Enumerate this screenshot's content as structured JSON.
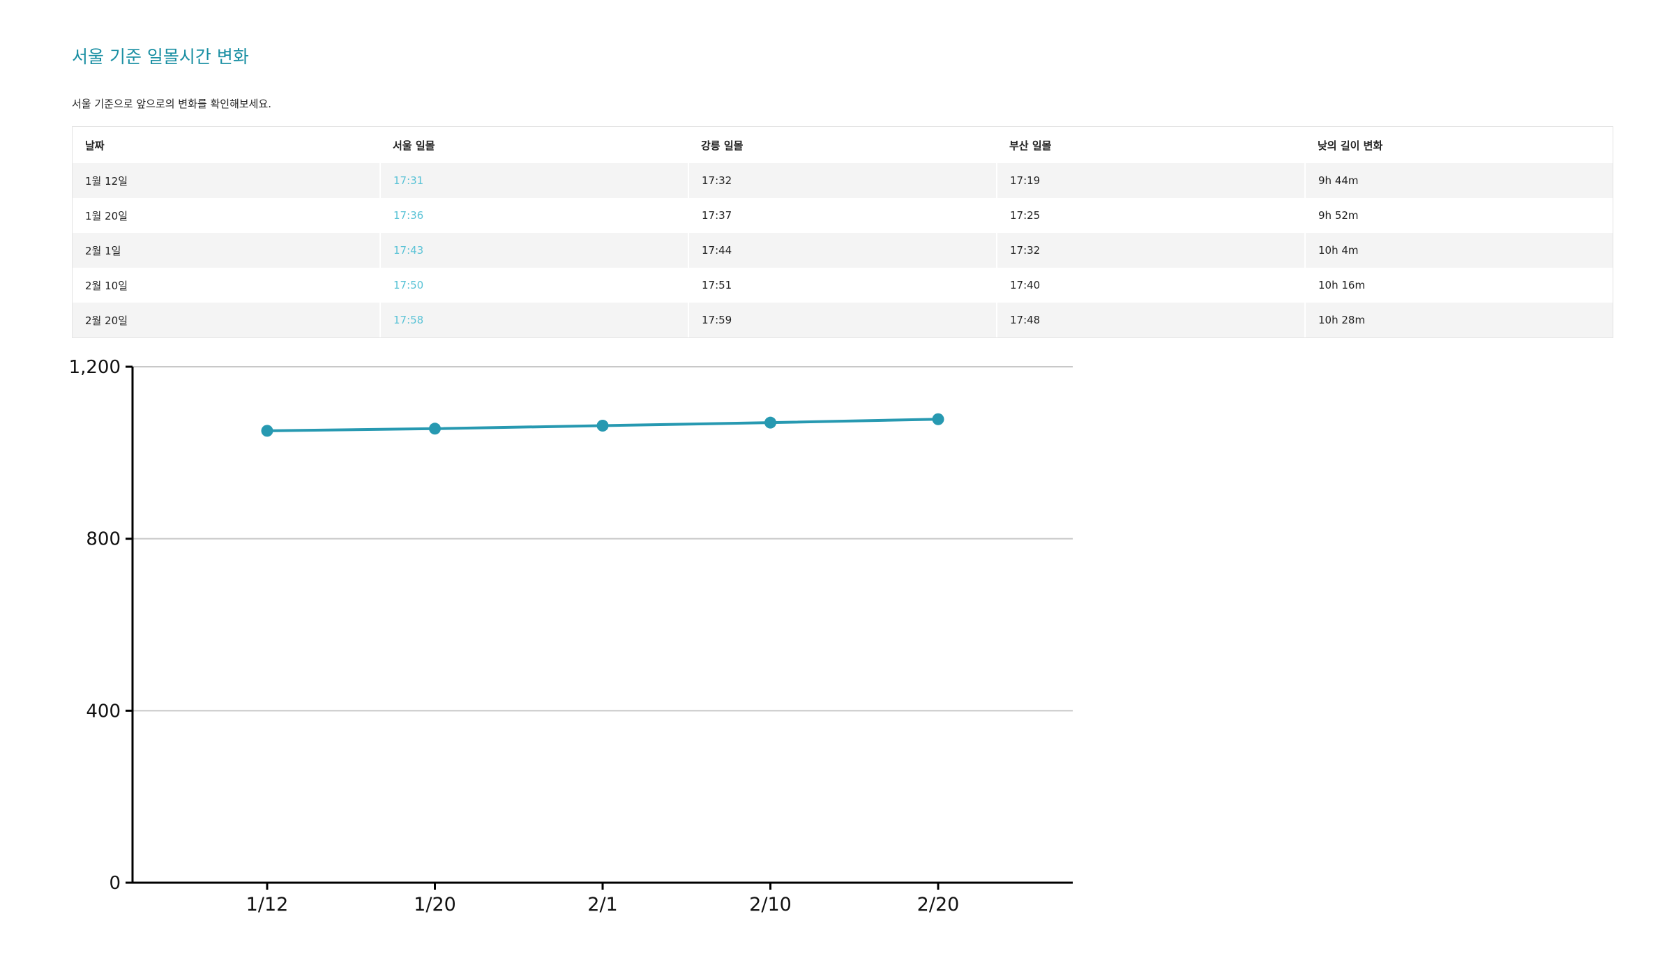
{
  "page": {
    "title": "서울 기준 일몰시간 변화",
    "subtitle": "서울 기준으로 앞으로의 변화를 확인해보세요."
  },
  "table": {
    "headers": [
      "날짜",
      "서울 일몰",
      "강릉 일몰",
      "부산 일몰",
      "낮의 길이 변화"
    ],
    "rows": [
      [
        "1월 12일",
        "17:31",
        "17:32",
        "17:19",
        "9h 44m"
      ],
      [
        "1월 20일",
        "17:36",
        "17:37",
        "17:25",
        "9h 52m"
      ],
      [
        "2월 1일",
        "17:43",
        "17:44",
        "17:32",
        "10h 4m"
      ],
      [
        "2월 10일",
        "17:50",
        "17:51",
        "17:40",
        "10h 16m"
      ],
      [
        "2월 20일",
        "17:58",
        "17:59",
        "17:48",
        "10h 28m"
      ]
    ]
  },
  "colors": {
    "accent": "#1a8fa3",
    "highlight_text": "#5bc3d6",
    "line": "#2799b1",
    "grid": "#c8c8c8"
  },
  "chart_data": {
    "type": "line",
    "categories": [
      "1/12",
      "1/20",
      "2/1",
      "2/10",
      "2/20"
    ],
    "series": [
      {
        "values": [
          1051,
          1056,
          1063,
          1070,
          1078
        ]
      }
    ],
    "ylim": [
      0,
      1200
    ],
    "yticks": [
      0,
      400,
      800,
      1200
    ],
    "ytick_labels": [
      "0",
      "400",
      "800",
      "1,200"
    ],
    "grid": true,
    "title": "",
    "xlabel": "",
    "ylabel": ""
  }
}
